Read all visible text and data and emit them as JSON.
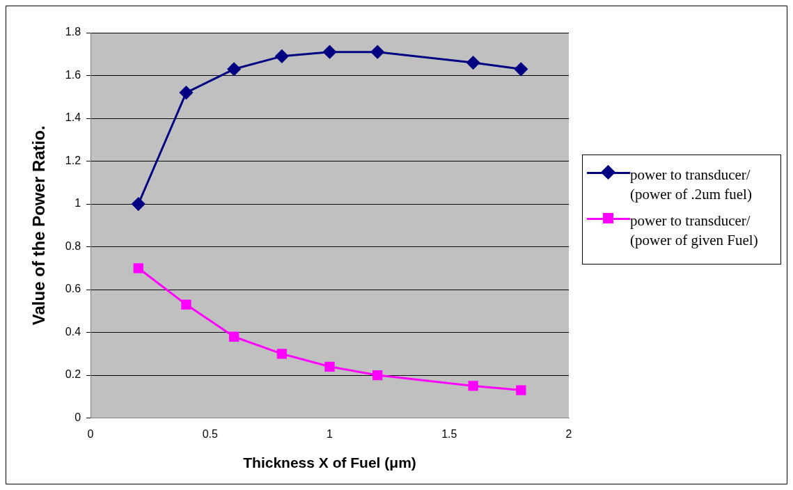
{
  "chart_data": {
    "type": "line",
    "xlabel": "Thickness X of Fuel (μm)",
    "ylabel": "Value of the Power Ratio.",
    "xlim": [
      0,
      2
    ],
    "xticks": [
      0,
      0.5,
      1,
      1.5,
      2
    ],
    "ylim": [
      0,
      1.8
    ],
    "yticks": [
      0,
      0.2,
      0.4,
      0.6,
      0.8,
      1,
      1.2,
      1.4,
      1.6,
      1.8
    ],
    "grid": "y",
    "legend": "right",
    "line_style": "solid",
    "series": [
      {
        "name": "power to transducer/ (power of .2um fuel)",
        "color": "#000080",
        "marker": "diamond",
        "x": [
          0.2,
          0.4,
          0.6,
          0.8,
          1.0,
          1.2,
          1.6,
          1.8
        ],
        "values": [
          1.0,
          1.52,
          1.63,
          1.69,
          1.71,
          1.71,
          1.66,
          1.63
        ]
      },
      {
        "name": "power to transducer/ (power of given Fuel)",
        "color": "#ff00ff",
        "marker": "square",
        "x": [
          0.2,
          0.4,
          0.6,
          0.8,
          1.0,
          1.2,
          1.6,
          1.8
        ],
        "values": [
          0.7,
          0.53,
          0.38,
          0.3,
          0.24,
          0.2,
          0.15,
          0.13
        ]
      }
    ]
  }
}
